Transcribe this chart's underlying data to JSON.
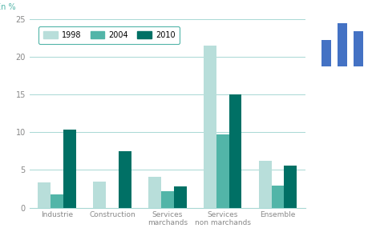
{
  "categories": [
    "Industrie",
    "Construction",
    "Services\nmarchands",
    "Services\nnon marchands",
    "Ensemble"
  ],
  "years": [
    "1998",
    "2004",
    "2010"
  ],
  "values": {
    "1998": [
      3.3,
      3.5,
      4.1,
      21.5,
      6.2
    ],
    "2004": [
      1.8,
      0.0,
      2.2,
      9.7,
      2.9
    ],
    "2010": [
      10.3,
      7.5,
      2.8,
      15.0,
      5.6
    ]
  },
  "colors": {
    "1998": "#b8deda",
    "2004": "#52b5a8",
    "2010": "#007065"
  },
  "ylabel_text": "En %",
  "ylim": [
    0,
    25
  ],
  "yticks": [
    0,
    5,
    10,
    15,
    20,
    25
  ],
  "bar_width": 0.23,
  "background_color": "#ffffff",
  "grid_color": "#a8d8d4",
  "axis_color": "#52b5a8",
  "text_color": "#52b5a8",
  "tick_label_color": "#888888",
  "legend_border_color": "#52b5a8",
  "right_bar_color": "#2060a0",
  "separator_color": "#40b0b0"
}
